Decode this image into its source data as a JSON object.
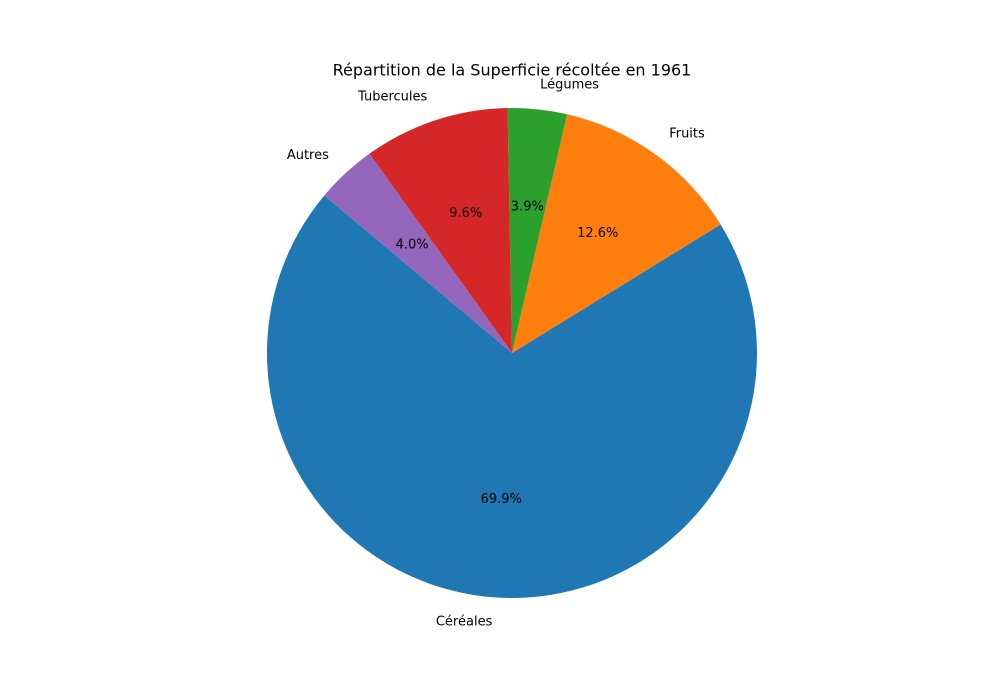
{
  "chart_data": {
    "type": "pie",
    "title": "Répartition de la Superficie récoltée en 1961",
    "categories": [
      "Céréales",
      "Fruits",
      "Légumes",
      "Tubercules",
      "Autres"
    ],
    "values": [
      69.9,
      12.6,
      3.9,
      9.6,
      4.0
    ],
    "value_labels": [
      "69.9%",
      "12.6%",
      "3.9%",
      "9.6%",
      "4.0%"
    ],
    "colors": [
      "#1f77b4",
      "#ff7f0e",
      "#2ca02c",
      "#d62728",
      "#9467bd"
    ],
    "start_angle": 140,
    "direction": "counterclockwise"
  }
}
